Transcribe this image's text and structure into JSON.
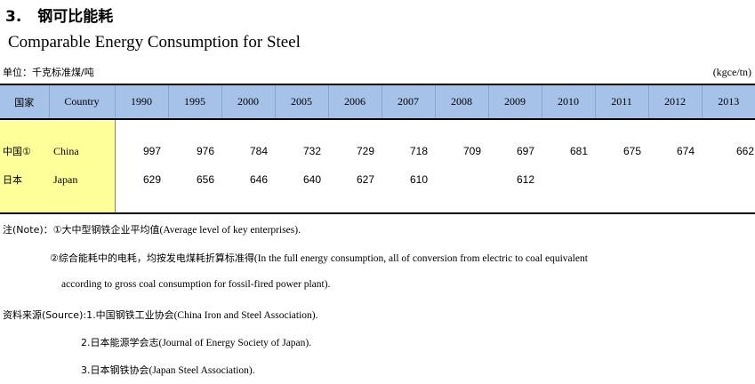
{
  "title": {
    "number": "3.",
    "cn": "钢可比能耗",
    "en": "Comparable Energy Consumption for Steel"
  },
  "unit": {
    "cn": "单位：千克标准煤/吨",
    "en": "(kgce/tn)"
  },
  "table": {
    "header": {
      "cn": "国家",
      "en": "Country",
      "years": [
        "1990",
        "1995",
        "2000",
        "2005",
        "2006",
        "2007",
        "2008",
        "2009",
        "2010",
        "2011",
        "2012",
        "2013"
      ]
    },
    "rows": [
      {
        "cn": "中国①",
        "en": "China",
        "values": [
          "997",
          "976",
          "784",
          "732",
          "729",
          "718",
          "709",
          "697",
          "681",
          "675",
          "674",
          "662"
        ]
      },
      {
        "cn": "日本",
        "en": "Japan",
        "values": [
          "629",
          "656",
          "646",
          "640",
          "627",
          "610",
          "",
          "612",
          "",
          "",
          "",
          ""
        ]
      }
    ]
  },
  "notes": {
    "n1_prefix": "注(Note)：①大中型钢铁企业平均值",
    "n1_text": "(Average level of key enterprises).",
    "n2_prefix": "②综合能耗中的电耗，均按发电煤耗折算标准得",
    "n2_text": "(In the full energy consumption, all of conversion from electric to coal equivalent",
    "n2_cont": "according to gross coal consumption for fossil-fired power plant).",
    "s1_prefix": "资料来源(Source):1.中国钢铁工业协会",
    "s1_text": "(China Iron and Steel Association).",
    "s2_prefix": "2.日本能源学会志",
    "s2_text": "(Journal of Energy Society of Japan).",
    "s3_prefix": "3.日本钢铁协会",
    "s3_text": "(Japan Steel Association)."
  }
}
